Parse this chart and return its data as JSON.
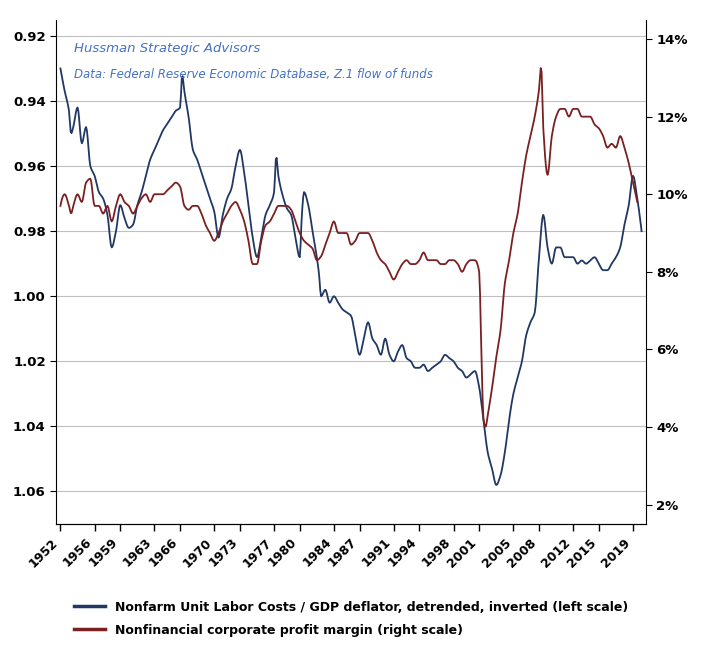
{
  "title_line1": "Hussman Strategic Advisors",
  "title_line2": "Data: Federal Reserve Economic Database, Z.1 flow of funds",
  "left_yticks": [
    0.92,
    0.94,
    0.96,
    0.98,
    1.0,
    1.02,
    1.04,
    1.06
  ],
  "right_yticks": [
    0.02,
    0.04,
    0.06,
    0.08,
    0.1,
    0.12,
    0.14
  ],
  "right_ytick_labels": [
    "2%",
    "4%",
    "6%",
    "8%",
    "10%",
    "12%",
    "14%"
  ],
  "left_ylim": [
    1.07,
    0.915
  ],
  "right_ylim": [
    0.015,
    0.145
  ],
  "xlim": [
    1951.5,
    2020.5
  ],
  "xticks": [
    1952,
    1956,
    1959,
    1963,
    1966,
    1970,
    1973,
    1977,
    1980,
    1984,
    1987,
    1991,
    1994,
    1998,
    2001,
    2005,
    2008,
    2012,
    2015,
    2019
  ],
  "legend1": "Nonfarm Unit Labor Costs / GDP deflator, detrended, inverted (left scale)",
  "legend2": "Nonfinancial corporate profit margin (right scale)",
  "color_labor": "#1F3864",
  "color_profit": "#7B2020",
  "background_color": "#FFFFFF",
  "grid_color": "#C0C0C0",
  "ulc_points": [
    [
      1952.0,
      0.93
    ],
    [
      1952.5,
      0.937
    ],
    [
      1953.0,
      0.943
    ],
    [
      1953.25,
      0.95
    ],
    [
      1953.5,
      0.948
    ],
    [
      1954.0,
      0.942
    ],
    [
      1954.5,
      0.953
    ],
    [
      1955.0,
      0.948
    ],
    [
      1955.5,
      0.96
    ],
    [
      1956.0,
      0.963
    ],
    [
      1956.5,
      0.968
    ],
    [
      1957.0,
      0.97
    ],
    [
      1957.5,
      0.975
    ],
    [
      1958.0,
      0.985
    ],
    [
      1958.5,
      0.98
    ],
    [
      1959.0,
      0.972
    ],
    [
      1959.5,
      0.976
    ],
    [
      1960.0,
      0.979
    ],
    [
      1960.5,
      0.978
    ],
    [
      1961.0,
      0.972
    ],
    [
      1961.5,
      0.968
    ],
    [
      1962.0,
      0.963
    ],
    [
      1962.5,
      0.958
    ],
    [
      1963.0,
      0.955
    ],
    [
      1963.5,
      0.952
    ],
    [
      1964.0,
      0.949
    ],
    [
      1964.5,
      0.947
    ],
    [
      1965.0,
      0.945
    ],
    [
      1965.5,
      0.943
    ],
    [
      1966.0,
      0.942
    ],
    [
      1966.25,
      0.932
    ],
    [
      1966.5,
      0.937
    ],
    [
      1967.0,
      0.945
    ],
    [
      1967.5,
      0.955
    ],
    [
      1968.0,
      0.958
    ],
    [
      1968.5,
      0.962
    ],
    [
      1969.0,
      0.966
    ],
    [
      1969.5,
      0.97
    ],
    [
      1970.0,
      0.974
    ],
    [
      1970.5,
      0.982
    ],
    [
      1971.0,
      0.975
    ],
    [
      1971.5,
      0.97
    ],
    [
      1972.0,
      0.967
    ],
    [
      1972.5,
      0.96
    ],
    [
      1973.0,
      0.955
    ],
    [
      1973.5,
      0.962
    ],
    [
      1974.0,
      0.972
    ],
    [
      1974.5,
      0.982
    ],
    [
      1975.0,
      0.988
    ],
    [
      1975.5,
      0.982
    ],
    [
      1976.0,
      0.975
    ],
    [
      1976.5,
      0.972
    ],
    [
      1977.0,
      0.968
    ],
    [
      1977.25,
      0.957
    ],
    [
      1977.5,
      0.963
    ],
    [
      1978.0,
      0.969
    ],
    [
      1978.5,
      0.973
    ],
    [
      1979.0,
      0.975
    ],
    [
      1979.5,
      0.982
    ],
    [
      1980.0,
      0.988
    ],
    [
      1980.25,
      0.975
    ],
    [
      1980.5,
      0.968
    ],
    [
      1981.0,
      0.972
    ],
    [
      1981.5,
      0.98
    ],
    [
      1982.0,
      0.988
    ],
    [
      1982.25,
      0.993
    ],
    [
      1982.5,
      1.0
    ],
    [
      1983.0,
      0.998
    ],
    [
      1983.5,
      1.002
    ],
    [
      1984.0,
      1.0
    ],
    [
      1984.5,
      1.002
    ],
    [
      1985.0,
      1.004
    ],
    [
      1985.5,
      1.005
    ],
    [
      1986.0,
      1.006
    ],
    [
      1986.5,
      1.012
    ],
    [
      1987.0,
      1.018
    ],
    [
      1987.5,
      1.013
    ],
    [
      1988.0,
      1.008
    ],
    [
      1988.5,
      1.013
    ],
    [
      1989.0,
      1.015
    ],
    [
      1989.5,
      1.018
    ],
    [
      1990.0,
      1.013
    ],
    [
      1990.5,
      1.018
    ],
    [
      1991.0,
      1.02
    ],
    [
      1991.5,
      1.017
    ],
    [
      1992.0,
      1.015
    ],
    [
      1992.5,
      1.019
    ],
    [
      1993.0,
      1.02
    ],
    [
      1993.5,
      1.022
    ],
    [
      1994.0,
      1.022
    ],
    [
      1994.5,
      1.021
    ],
    [
      1995.0,
      1.023
    ],
    [
      1995.5,
      1.022
    ],
    [
      1996.0,
      1.021
    ],
    [
      1996.5,
      1.02
    ],
    [
      1997.0,
      1.018
    ],
    [
      1997.5,
      1.019
    ],
    [
      1998.0,
      1.02
    ],
    [
      1998.5,
      1.022
    ],
    [
      1999.0,
      1.023
    ],
    [
      1999.5,
      1.025
    ],
    [
      2000.0,
      1.024
    ],
    [
      2000.5,
      1.023
    ],
    [
      2001.0,
      1.028
    ],
    [
      2001.5,
      1.038
    ],
    [
      2002.0,
      1.048
    ],
    [
      2002.5,
      1.053
    ],
    [
      2003.0,
      1.058
    ],
    [
      2003.5,
      1.055
    ],
    [
      2004.0,
      1.048
    ],
    [
      2004.5,
      1.038
    ],
    [
      2005.0,
      1.03
    ],
    [
      2005.5,
      1.025
    ],
    [
      2006.0,
      1.02
    ],
    [
      2006.5,
      1.012
    ],
    [
      2007.0,
      1.008
    ],
    [
      2007.5,
      1.005
    ],
    [
      2008.0,
      0.988
    ],
    [
      2008.5,
      0.975
    ],
    [
      2009.0,
      0.985
    ],
    [
      2009.5,
      0.99
    ],
    [
      2010.0,
      0.985
    ],
    [
      2010.5,
      0.985
    ],
    [
      2011.0,
      0.988
    ],
    [
      2011.5,
      0.988
    ],
    [
      2012.0,
      0.988
    ],
    [
      2012.5,
      0.99
    ],
    [
      2013.0,
      0.989
    ],
    [
      2013.5,
      0.99
    ],
    [
      2014.0,
      0.989
    ],
    [
      2014.5,
      0.988
    ],
    [
      2015.0,
      0.99
    ],
    [
      2015.5,
      0.992
    ],
    [
      2016.0,
      0.992
    ],
    [
      2016.5,
      0.99
    ],
    [
      2017.0,
      0.988
    ],
    [
      2017.5,
      0.985
    ],
    [
      2018.0,
      0.978
    ],
    [
      2018.5,
      0.972
    ],
    [
      2019.0,
      0.963
    ],
    [
      2019.5,
      0.97
    ],
    [
      2020.0,
      0.98
    ]
  ],
  "profit_points": [
    [
      1952.0,
      0.097
    ],
    [
      1952.5,
      0.1
    ],
    [
      1953.0,
      0.097
    ],
    [
      1953.25,
      0.095
    ],
    [
      1953.5,
      0.097
    ],
    [
      1954.0,
      0.1
    ],
    [
      1954.5,
      0.098
    ],
    [
      1955.0,
      0.103
    ],
    [
      1955.5,
      0.104
    ],
    [
      1956.0,
      0.097
    ],
    [
      1956.5,
      0.097
    ],
    [
      1957.0,
      0.095
    ],
    [
      1957.5,
      0.097
    ],
    [
      1958.0,
      0.093
    ],
    [
      1958.5,
      0.097
    ],
    [
      1959.0,
      0.1
    ],
    [
      1959.5,
      0.098
    ],
    [
      1960.0,
      0.097
    ],
    [
      1960.5,
      0.095
    ],
    [
      1961.0,
      0.097
    ],
    [
      1961.5,
      0.099
    ],
    [
      1962.0,
      0.1
    ],
    [
      1962.5,
      0.098
    ],
    [
      1963.0,
      0.1
    ],
    [
      1963.5,
      0.1
    ],
    [
      1964.0,
      0.1
    ],
    [
      1964.5,
      0.101
    ],
    [
      1965.0,
      0.102
    ],
    [
      1965.5,
      0.103
    ],
    [
      1966.0,
      0.102
    ],
    [
      1966.5,
      0.097
    ],
    [
      1967.0,
      0.096
    ],
    [
      1967.5,
      0.097
    ],
    [
      1968.0,
      0.097
    ],
    [
      1968.5,
      0.095
    ],
    [
      1969.0,
      0.092
    ],
    [
      1969.5,
      0.09
    ],
    [
      1970.0,
      0.088
    ],
    [
      1970.5,
      0.09
    ],
    [
      1971.0,
      0.093
    ],
    [
      1971.5,
      0.095
    ],
    [
      1972.0,
      0.097
    ],
    [
      1972.5,
      0.098
    ],
    [
      1973.0,
      0.096
    ],
    [
      1973.5,
      0.093
    ],
    [
      1974.0,
      0.088
    ],
    [
      1974.5,
      0.082
    ],
    [
      1975.0,
      0.082
    ],
    [
      1975.5,
      0.088
    ],
    [
      1976.0,
      0.092
    ],
    [
      1976.5,
      0.093
    ],
    [
      1977.0,
      0.095
    ],
    [
      1977.5,
      0.097
    ],
    [
      1978.0,
      0.097
    ],
    [
      1978.5,
      0.097
    ],
    [
      1979.0,
      0.096
    ],
    [
      1979.5,
      0.093
    ],
    [
      1980.0,
      0.09
    ],
    [
      1980.5,
      0.088
    ],
    [
      1981.0,
      0.087
    ],
    [
      1981.5,
      0.086
    ],
    [
      1982.0,
      0.083
    ],
    [
      1982.5,
      0.084
    ],
    [
      1983.0,
      0.087
    ],
    [
      1983.5,
      0.09
    ],
    [
      1984.0,
      0.093
    ],
    [
      1984.5,
      0.09
    ],
    [
      1985.0,
      0.09
    ],
    [
      1985.5,
      0.09
    ],
    [
      1986.0,
      0.087
    ],
    [
      1986.5,
      0.088
    ],
    [
      1987.0,
      0.09
    ],
    [
      1987.5,
      0.09
    ],
    [
      1988.0,
      0.09
    ],
    [
      1988.5,
      0.088
    ],
    [
      1989.0,
      0.085
    ],
    [
      1989.5,
      0.083
    ],
    [
      1990.0,
      0.082
    ],
    [
      1990.5,
      0.08
    ],
    [
      1991.0,
      0.078
    ],
    [
      1991.5,
      0.08
    ],
    [
      1992.0,
      0.082
    ],
    [
      1992.5,
      0.083
    ],
    [
      1993.0,
      0.082
    ],
    [
      1993.5,
      0.082
    ],
    [
      1994.0,
      0.083
    ],
    [
      1994.5,
      0.085
    ],
    [
      1995.0,
      0.083
    ],
    [
      1995.5,
      0.083
    ],
    [
      1996.0,
      0.083
    ],
    [
      1996.5,
      0.082
    ],
    [
      1997.0,
      0.082
    ],
    [
      1997.5,
      0.083
    ],
    [
      1998.0,
      0.083
    ],
    [
      1998.5,
      0.082
    ],
    [
      1999.0,
      0.08
    ],
    [
      1999.5,
      0.082
    ],
    [
      2000.0,
      0.083
    ],
    [
      2000.5,
      0.083
    ],
    [
      2001.0,
      0.08
    ],
    [
      2001.25,
      0.06
    ],
    [
      2001.5,
      0.042
    ],
    [
      2001.75,
      0.04
    ],
    [
      2002.0,
      0.043
    ],
    [
      2002.5,
      0.05
    ],
    [
      2003.0,
      0.058
    ],
    [
      2003.5,
      0.065
    ],
    [
      2004.0,
      0.077
    ],
    [
      2004.5,
      0.083
    ],
    [
      2005.0,
      0.09
    ],
    [
      2005.5,
      0.095
    ],
    [
      2006.0,
      0.103
    ],
    [
      2006.5,
      0.11
    ],
    [
      2007.0,
      0.115
    ],
    [
      2007.5,
      0.12
    ],
    [
      2008.0,
      0.127
    ],
    [
      2008.25,
      0.133
    ],
    [
      2008.5,
      0.117
    ],
    [
      2009.0,
      0.105
    ],
    [
      2009.5,
      0.115
    ],
    [
      2010.0,
      0.12
    ],
    [
      2010.5,
      0.122
    ],
    [
      2011.0,
      0.122
    ],
    [
      2011.5,
      0.12
    ],
    [
      2012.0,
      0.122
    ],
    [
      2012.5,
      0.122
    ],
    [
      2013.0,
      0.12
    ],
    [
      2013.5,
      0.12
    ],
    [
      2014.0,
      0.12
    ],
    [
      2014.5,
      0.118
    ],
    [
      2015.0,
      0.117
    ],
    [
      2015.5,
      0.115
    ],
    [
      2016.0,
      0.112
    ],
    [
      2016.5,
      0.113
    ],
    [
      2017.0,
      0.112
    ],
    [
      2017.5,
      0.115
    ],
    [
      2018.0,
      0.112
    ],
    [
      2018.5,
      0.108
    ],
    [
      2019.0,
      0.103
    ],
    [
      2019.5,
      0.098
    ]
  ]
}
